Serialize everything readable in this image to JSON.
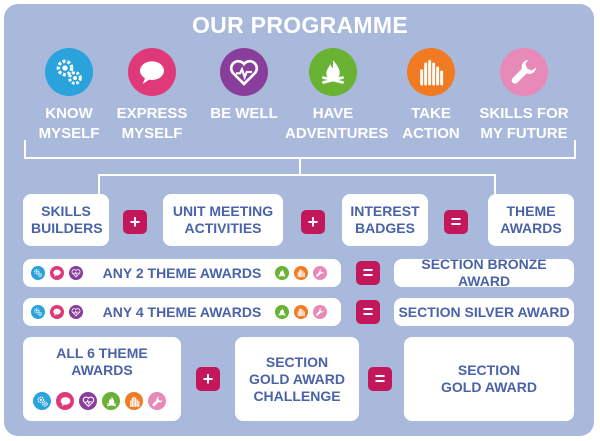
{
  "title": "OUR PROGRAMME",
  "themes": [
    {
      "label1": "KNOW",
      "label2": "MYSELF",
      "color": "#2aa3dc",
      "icon": "gears-icon"
    },
    {
      "label1": "EXPRESS",
      "label2": "MYSELF",
      "color": "#e0397a",
      "icon": "speech-bubble-icon"
    },
    {
      "label1": "BE WELL",
      "label2": "",
      "color": "#8a3e9b",
      "icon": "heart-pulse-icon"
    },
    {
      "label1": "HAVE",
      "label2": "ADVENTURES",
      "color": "#69b234",
      "icon": "campfire-icon"
    },
    {
      "label1": "TAKE",
      "label2": "ACTION",
      "color": "#f07b22",
      "icon": "raised-hands-icon"
    },
    {
      "label1": "SKILLS FOR",
      "label2": "MY FUTURE",
      "color": "#e88ab8",
      "icon": "wrench-icon"
    }
  ],
  "equation": {
    "skills_builders": "SKILLS BUILDERS",
    "unit_meeting": "UNIT MEETING ACTIVITIES",
    "interest_badges": "INTEREST BADGES",
    "theme_awards": "THEME AWARDS",
    "plus": "+",
    "equals": "="
  },
  "bronze": {
    "left": "ANY 2 THEME AWARDS",
    "right": "SECTION BRONZE AWARD"
  },
  "silver": {
    "left": "ANY 4 THEME AWARDS",
    "right": "SECTION SILVER AWARD"
  },
  "gold": {
    "left": "ALL 6 THEME AWARDS",
    "middle": "SECTION GOLD AWARD CHALLENGE",
    "right": "SECTION GOLD AWARD"
  },
  "colors": {
    "background": "#a9b9dc",
    "text": "#4a63a8",
    "operator": "#c2185b"
  }
}
